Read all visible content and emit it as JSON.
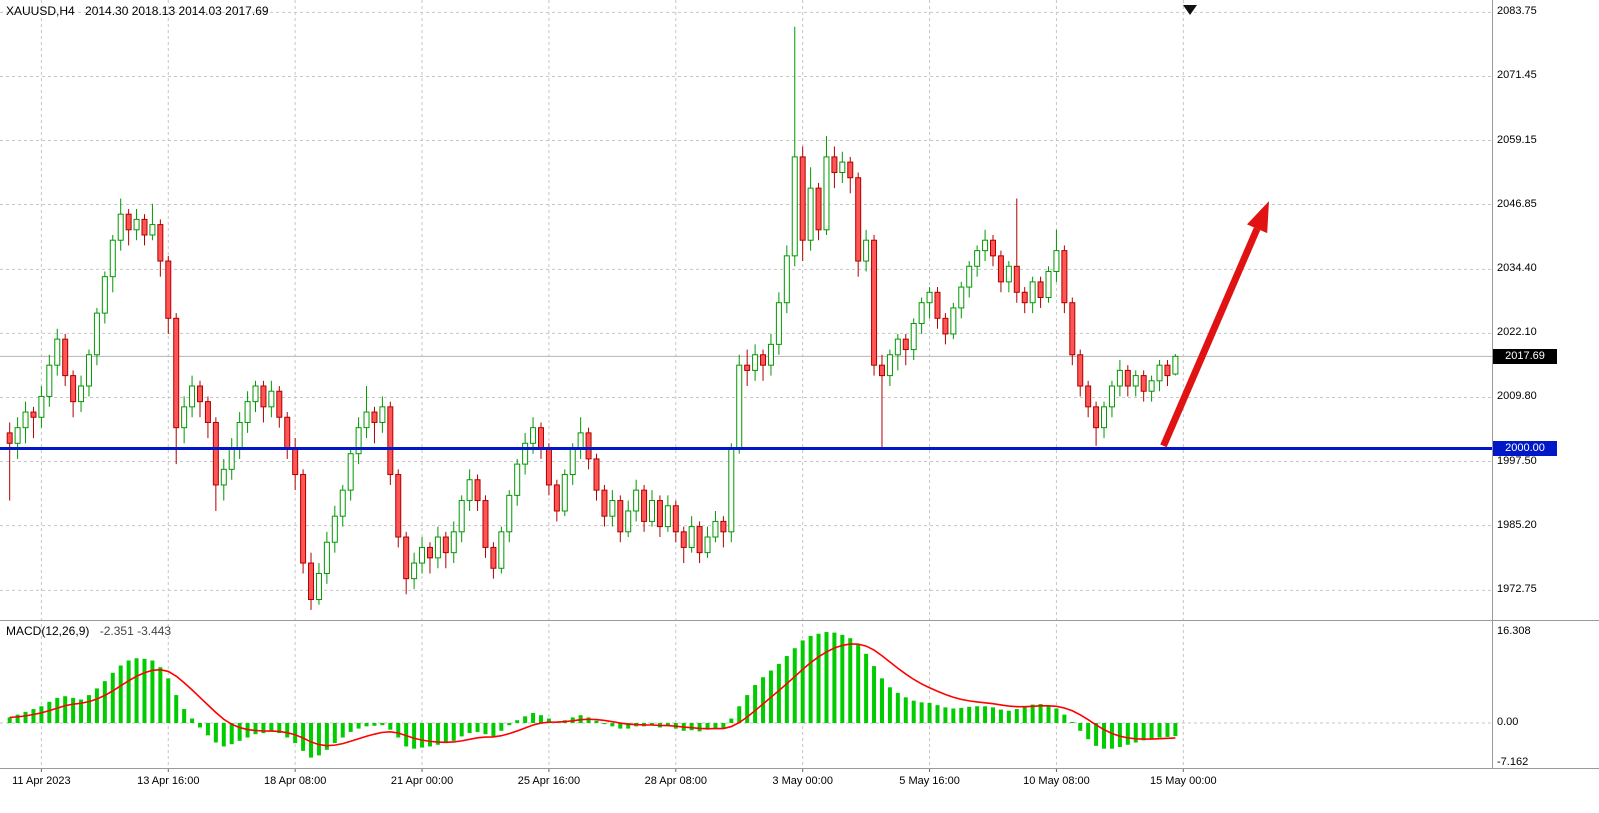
{
  "header": {
    "symbol_period": "XAUUSD,H4",
    "ohlc": "2014.30 2018.13 2014.03 2017.69"
  },
  "macd_label": {
    "name": "MACD(12,26,9)",
    "values": "-2.351 -3.443"
  },
  "price_axis": {
    "labels": [
      "2083.75",
      "2071.45",
      "2059.15",
      "2046.85",
      "2034.40",
      "2022.10",
      "2009.80",
      "1997.50",
      "1985.20",
      "1972.75"
    ],
    "current_tag": "2017.69",
    "level_tag": "2000.00"
  },
  "macd_axis": {
    "labels": [
      {
        "text": "16.308",
        "value": 16.308
      },
      {
        "text": "0.00",
        "value": 0
      },
      {
        "text": "-7.162",
        "value": -7.162
      }
    ]
  },
  "time_axis": {
    "labels": [
      {
        "text": "11 Apr 2023",
        "bar": 0
      },
      {
        "text": "13 Apr 16:00",
        "bar": 16
      },
      {
        "text": "18 Apr 08:00",
        "bar": 32
      },
      {
        "text": "21 Apr 00:00",
        "bar": 48
      },
      {
        "text": "25 Apr 16:00",
        "bar": 64
      },
      {
        "text": "28 Apr 08:00",
        "bar": 80
      },
      {
        "text": "3 May 00:00",
        "bar": 96
      },
      {
        "text": "5 May 16:00",
        "bar": 112
      },
      {
        "text": "10 May 08:00",
        "bar": 128
      },
      {
        "text": "15 May 00:00",
        "bar": 144
      }
    ]
  },
  "colors": {
    "bull_border": "#009900",
    "bull_fill": "#ffffff",
    "bear_border": "#b00000",
    "bear_fill": "#ff5555",
    "histogram": "#00cc00",
    "signal": "#ff0000",
    "hline": "#0018c8",
    "arrow": "#e01212",
    "grid": "#c6c6c6",
    "separator": "#9a9a9a",
    "tag_current_bg": "#000000",
    "tag_level_bg": "#0018c8",
    "axis_text": "#000000"
  },
  "chart_data": {
    "type": "candlestick",
    "symbol": "XAUUSD",
    "timeframe": "H4",
    "title": "XAUUSD,H4",
    "ohlc_header": {
      "open": "2014.30",
      "high": "2018.13",
      "low": "2014.03",
      "close": "2017.69"
    },
    "current_price": 2017.69,
    "support_line_price": 2000.0,
    "y_axis_range": [
      1966,
      2086
    ],
    "x_axis_note": "H4 bars, 11 Apr 2023 - 15 May 2023, grid every 16 bars",
    "candles": [
      [
        2003,
        2005,
        1990,
        2001
      ],
      [
        2001,
        2006,
        1998,
        2004
      ],
      [
        2004,
        2009,
        2001,
        2007
      ],
      [
        2007,
        2008,
        2002,
        2006
      ],
      [
        2006,
        2012,
        2004,
        2010
      ],
      [
        2010,
        2018,
        2008,
        2016
      ],
      [
        2016,
        2023,
        2014,
        2021
      ],
      [
        2021,
        2022,
        2012,
        2014
      ],
      [
        2014,
        2015,
        2006,
        2009
      ],
      [
        2009,
        2014,
        2007,
        2012
      ],
      [
        2012,
        2019,
        2010,
        2018
      ],
      [
        2018,
        2027,
        2016,
        2026
      ],
      [
        2026,
        2034,
        2024,
        2033
      ],
      [
        2033,
        2041,
        2030,
        2040
      ],
      [
        2040,
        2048,
        2038,
        2045
      ],
      [
        2045,
        2046,
        2039,
        2042
      ],
      [
        2042,
        2046,
        2040,
        2044
      ],
      [
        2044,
        2045,
        2039,
        2041
      ],
      [
        2041,
        2047,
        2040,
        2043
      ],
      [
        2043,
        2044,
        2033,
        2036
      ],
      [
        2036,
        2037,
        2022,
        2025
      ],
      [
        2025,
        2026,
        1997,
        2004
      ],
      [
        2004,
        2010,
        2001,
        2008
      ],
      [
        2008,
        2014,
        2006,
        2012
      ],
      [
        2012,
        2013,
        2006,
        2009
      ],
      [
        2009,
        2010,
        2002,
        2005
      ],
      [
        2005,
        2006,
        1988,
        1993
      ],
      [
        1993,
        1998,
        1990,
        1996
      ],
      [
        1996,
        2002,
        1994,
        2000
      ],
      [
        2000,
        2007,
        1998,
        2005
      ],
      [
        2005,
        2011,
        2003,
        2009
      ],
      [
        2009,
        2013,
        2007,
        2012
      ],
      [
        2012,
        2013,
        2005,
        2008
      ],
      [
        2008,
        2013,
        2006,
        2011
      ],
      [
        2011,
        2012,
        2004,
        2006
      ],
      [
        2006,
        2007,
        1998,
        2000
      ],
      [
        2000,
        2002,
        1992,
        1995
      ],
      [
        1995,
        1996,
        1976,
        1978
      ],
      [
        1978,
        1980,
        1969,
        1971
      ],
      [
        1971,
        1978,
        1970,
        1976
      ],
      [
        1976,
        1984,
        1974,
        1982
      ],
      [
        1982,
        1989,
        1980,
        1987
      ],
      [
        1987,
        1993,
        1985,
        1992
      ],
      [
        1992,
        2000,
        1990,
        1999
      ],
      [
        1999,
        2006,
        1997,
        2004
      ],
      [
        2004,
        2012,
        2002,
        2007
      ],
      [
        2007,
        2008,
        2001,
        2005
      ],
      [
        2005,
        2010,
        2003,
        2008
      ],
      [
        2008,
        2009,
        1993,
        1995
      ],
      [
        1995,
        1996,
        1981,
        1983
      ],
      [
        1983,
        1984,
        1972,
        1975
      ],
      [
        1975,
        1980,
        1973,
        1978
      ],
      [
        1978,
        1983,
        1976,
        1981
      ],
      [
        1981,
        1982,
        1976,
        1979
      ],
      [
        1979,
        1985,
        1977,
        1983
      ],
      [
        1983,
        1984,
        1977,
        1980
      ],
      [
        1980,
        1986,
        1978,
        1984
      ],
      [
        1984,
        1991,
        1982,
        1990
      ],
      [
        1990,
        1996,
        1988,
        1994
      ],
      [
        1994,
        1995,
        1988,
        1990
      ],
      [
        1990,
        1991,
        1979,
        1981
      ],
      [
        1981,
        1982,
        1975,
        1977
      ],
      [
        1977,
        1985,
        1976,
        1984
      ],
      [
        1984,
        1992,
        1982,
        1991
      ],
      [
        1991,
        1998,
        1989,
        1997
      ],
      [
        1997,
        2003,
        1995,
        2001
      ],
      [
        2001,
        2006,
        1999,
        2004
      ],
      [
        2004,
        2005,
        1998,
        2000
      ],
      [
        2000,
        2001,
        1991,
        1993
      ],
      [
        1993,
        1994,
        1986,
        1988
      ],
      [
        1988,
        1996,
        1987,
        1995
      ],
      [
        1995,
        2001,
        1993,
        2000
      ],
      [
        2000,
        2006,
        1998,
        2003
      ],
      [
        2003,
        2004,
        1996,
        1998
      ],
      [
        1998,
        1999,
        1990,
        1992
      ],
      [
        1992,
        1993,
        1985,
        1987
      ],
      [
        1987,
        1992,
        1985,
        1990
      ],
      [
        1990,
        1991,
        1982,
        1984
      ],
      [
        1984,
        1990,
        1983,
        1988
      ],
      [
        1988,
        1994,
        1986,
        1992
      ],
      [
        1992,
        1993,
        1984,
        1986
      ],
      [
        1986,
        1992,
        1985,
        1990
      ],
      [
        1990,
        1991,
        1983,
        1985
      ],
      [
        1985,
        1991,
        1984,
        1989
      ],
      [
        1989,
        1990,
        1982,
        1984
      ],
      [
        1984,
        1985,
        1978,
        1981
      ],
      [
        1981,
        1987,
        1980,
        1985
      ],
      [
        1985,
        1986,
        1978,
        1980
      ],
      [
        1980,
        1985,
        1979,
        1983
      ],
      [
        1983,
        1988,
        1982,
        1986
      ],
      [
        1986,
        1987,
        1981,
        1984
      ],
      [
        1984,
        2001,
        1982,
        2000
      ],
      [
        2000,
        2018,
        1999,
        2016
      ],
      [
        2016,
        2019,
        2012,
        2015
      ],
      [
        2015,
        2020,
        2013,
        2018
      ],
      [
        2018,
        2019,
        2013,
        2016
      ],
      [
        2016,
        2022,
        2014,
        2020
      ],
      [
        2020,
        2030,
        2018,
        2028
      ],
      [
        2028,
        2039,
        2026,
        2037
      ],
      [
        2037,
        2081,
        2035,
        2056
      ],
      [
        2056,
        2058,
        2036,
        2040
      ],
      [
        2040,
        2054,
        2038,
        2050
      ],
      [
        2050,
        2051,
        2040,
        2042
      ],
      [
        2042,
        2060,
        2041,
        2056
      ],
      [
        2056,
        2058,
        2050,
        2053
      ],
      [
        2053,
        2057,
        2051,
        2055
      ],
      [
        2055,
        2056,
        2049,
        2052
      ],
      [
        2052,
        2053,
        2033,
        2036
      ],
      [
        2036,
        2042,
        2034,
        2040
      ],
      [
        2040,
        2041,
        2014,
        2016
      ],
      [
        2016,
        2018,
        2000,
        2014
      ],
      [
        2014,
        2019,
        2012,
        2018
      ],
      [
        2018,
        2022,
        2015,
        2021
      ],
      [
        2021,
        2022,
        2016,
        2019
      ],
      [
        2019,
        2025,
        2017,
        2024
      ],
      [
        2024,
        2029,
        2022,
        2028
      ],
      [
        2028,
        2031,
        2025,
        2030
      ],
      [
        2030,
        2031,
        2023,
        2025
      ],
      [
        2025,
        2026,
        2020,
        2022
      ],
      [
        2022,
        2028,
        2021,
        2027
      ],
      [
        2027,
        2032,
        2025,
        2031
      ],
      [
        2031,
        2036,
        2029,
        2035
      ],
      [
        2035,
        2039,
        2033,
        2038
      ],
      [
        2038,
        2042,
        2036,
        2040
      ],
      [
        2040,
        2041,
        2035,
        2037
      ],
      [
        2037,
        2038,
        2030,
        2032
      ],
      [
        2032,
        2036,
        2030,
        2035
      ],
      [
        2035,
        2048,
        2028,
        2030
      ],
      [
        2030,
        2031,
        2026,
        2028
      ],
      [
        2028,
        2033,
        2026,
        2032
      ],
      [
        2032,
        2033,
        2027,
        2029
      ],
      [
        2029,
        2035,
        2028,
        2034
      ],
      [
        2034,
        2042,
        2032,
        2038
      ],
      [
        2038,
        2039,
        2026,
        2028
      ],
      [
        2028,
        2029,
        2016,
        2018
      ],
      [
        2018,
        2019,
        2010,
        2012
      ],
      [
        2012,
        2013,
        2006,
        2008
      ],
      [
        2008,
        2009,
        2000.5,
        2004
      ],
      [
        2004,
        2009,
        2002,
        2008
      ],
      [
        2008,
        2013,
        2006,
        2012
      ],
      [
        2012,
        2017,
        2010,
        2015
      ],
      [
        2015,
        2016,
        2010,
        2012
      ],
      [
        2012,
        2015,
        2010,
        2014
      ],
      [
        2014,
        2015,
        2009,
        2011
      ],
      [
        2011,
        2014,
        2009,
        2013
      ],
      [
        2013,
        2017,
        2011,
        2016
      ],
      [
        2016,
        2017,
        2012,
        2014
      ],
      [
        2014.3,
        2018.13,
        2014.03,
        2017.69
      ]
    ],
    "indicator": {
      "type": "macd",
      "params": "12,26,9",
      "macd_value": -2.351,
      "signal_value": -3.443,
      "signal_period": 9,
      "scale": [
        16.308,
        0,
        -7.162
      ],
      "histogram": [
        1.0,
        1.5,
        2.0,
        2.5,
        3.0,
        3.8,
        4.5,
        4.8,
        4.5,
        4.2,
        5.0,
        6.2,
        7.5,
        9.0,
        10.3,
        11.2,
        11.6,
        11.5,
        11.2,
        10.0,
        8.0,
        5.0,
        2.5,
        0.8,
        -0.8,
        -2.2,
        -3.5,
        -4.2,
        -3.8,
        -3.2,
        -2.6,
        -2.0,
        -1.8,
        -1.5,
        -1.8,
        -2.6,
        -3.6,
        -5.0,
        -6.2,
        -5.8,
        -4.8,
        -3.6,
        -2.6,
        -1.6,
        -1.0,
        -0.6,
        -0.5,
        -0.4,
        -1.2,
        -2.6,
        -4.2,
        -4.6,
        -4.4,
        -4.2,
        -3.9,
        -3.6,
        -3.2,
        -2.4,
        -1.8,
        -1.6,
        -2.0,
        -2.4,
        -1.4,
        -0.4,
        0.5,
        1.2,
        1.8,
        1.4,
        0.8,
        0.2,
        0.5,
        1.0,
        1.4,
        1.0,
        0.4,
        -0.2,
        -0.6,
        -1.0,
        -1.0,
        -0.6,
        -0.6,
        -0.4,
        -0.8,
        -0.5,
        -1.0,
        -1.4,
        -1.3,
        -1.5,
        -1.2,
        -0.9,
        -1.0,
        0.8,
        3.0,
        5.0,
        6.8,
        8.2,
        9.4,
        10.6,
        12.0,
        13.4,
        14.8,
        15.6,
        16.0,
        16.3,
        16.2,
        15.8,
        15.2,
        14.0,
        12.4,
        10.2,
        8.0,
        6.4,
        5.4,
        4.6,
        4.0,
        3.7,
        3.6,
        3.2,
        2.8,
        2.6,
        2.7,
        2.9,
        3.0,
        3.0,
        2.8,
        2.4,
        2.2,
        2.5,
        2.9,
        3.3,
        3.4,
        3.1,
        2.6,
        1.5,
        0.2,
        -1.4,
        -2.9,
        -4.1,
        -4.6,
        -4.6,
        -4.3,
        -3.9,
        -3.5,
        -3.1,
        -2.8,
        -2.6,
        -2.5,
        -2.351
      ]
    },
    "annotations": {
      "support_line": {
        "price": 2000.0,
        "style": "solid",
        "width": 3
      },
      "trend_arrow": {
        "from_bar": 141.5,
        "from_price": 2000.5,
        "to_bar": 154.8,
        "to_price": 2047.5,
        "direction": "up"
      }
    }
  }
}
